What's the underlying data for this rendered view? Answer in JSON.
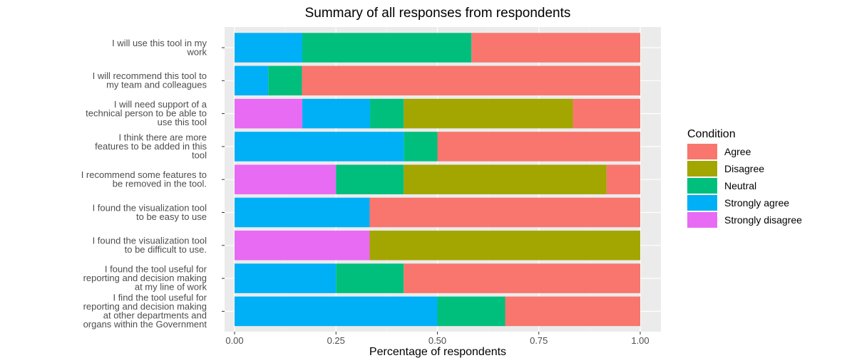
{
  "chart_data": {
    "type": "bar",
    "orientation": "horizontal",
    "stacked": true,
    "title": "Summary of all responses from respondents",
    "xlabel": "Percentage of respondents",
    "ylabel": "",
    "xlim": [
      0,
      1
    ],
    "x_ticks": [
      "0.00",
      "0.25",
      "0.50",
      "0.75",
      "1.00"
    ],
    "grid": true,
    "legend": {
      "title": "Condition",
      "position": "right",
      "entries": [
        "Agree",
        "Disagree",
        "Neutral",
        "Strongly agree",
        "Strongly disagree"
      ]
    },
    "colors": {
      "Agree": "#F8766D",
      "Disagree": "#A3A500",
      "Neutral": "#00BF7D",
      "Strongly agree": "#00B0F6",
      "Strongly disagree": "#E76BF3"
    },
    "stack_order": [
      "Strongly disagree",
      "Strongly agree",
      "Neutral",
      "Disagree",
      "Agree"
    ],
    "categories": [
      [
        "I will use this tool in my",
        "work"
      ],
      [
        "I will recommend this tool to",
        "my team and colleagues"
      ],
      [
        "I will need support of a",
        "technical person to be able to",
        "use this tool"
      ],
      [
        "I think there are more",
        "features to be added in this",
        "tool"
      ],
      [
        "I recommend some features to",
        "be removed in the tool."
      ],
      [
        "I found the visualization tool",
        "to be easy to use"
      ],
      [
        "I found the visualization tool",
        "to be difficult to use."
      ],
      [
        "I found the tool useful for",
        "reporting and decision making",
        "at my line of work"
      ],
      [
        "I find the tool useful for",
        "reporting and decision making",
        "at other departments and",
        "organs within the Government"
      ]
    ],
    "series": [
      {
        "name": "Strongly disagree",
        "values": [
          0,
          0,
          0.167,
          0,
          0.25,
          0,
          0.333,
          0,
          0
        ]
      },
      {
        "name": "Strongly agree",
        "values": [
          0.167,
          0.083,
          0.167,
          0.417,
          0,
          0.333,
          0,
          0.25,
          0.5
        ]
      },
      {
        "name": "Neutral",
        "values": [
          0.417,
          0.083,
          0.083,
          0.083,
          0.167,
          0,
          0,
          0.167,
          0.167
        ]
      },
      {
        "name": "Disagree",
        "values": [
          0,
          0,
          0.417,
          0,
          0.5,
          0,
          0.667,
          0,
          0
        ]
      },
      {
        "name": "Agree",
        "values": [
          0.416,
          0.834,
          0.166,
          0.5,
          0.083,
          0.667,
          0,
          0.583,
          0.333
        ]
      }
    ]
  }
}
